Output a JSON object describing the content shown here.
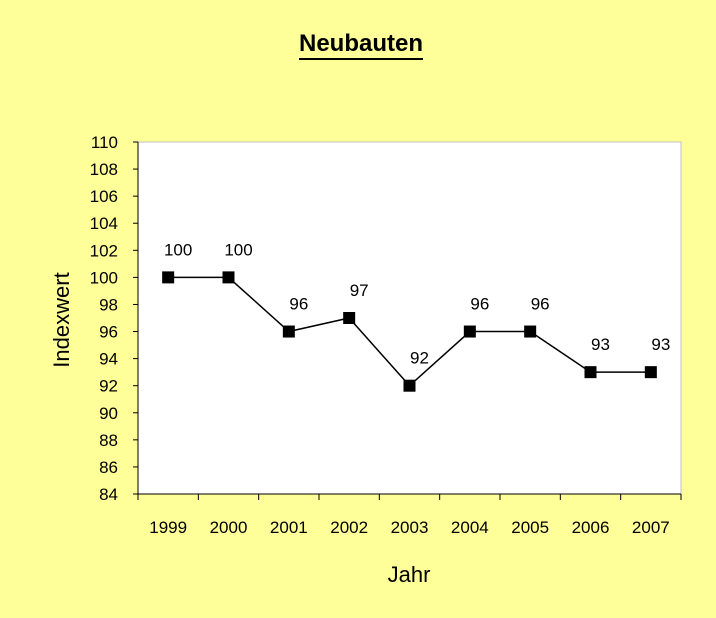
{
  "chart_data": {
    "type": "line",
    "title": "Neubauten",
    "xlabel": "Jahr",
    "ylabel": "Indexwert",
    "categories": [
      "1999",
      "2000",
      "2001",
      "2002",
      "2003",
      "2004",
      "2005",
      "2006",
      "2007"
    ],
    "series": [
      {
        "values": [
          100,
          100,
          96,
          97,
          92,
          96,
          96,
          93,
          93
        ]
      }
    ],
    "data_labels": [
      "100",
      "100",
      "96",
      "97",
      "92",
      "96",
      "96",
      "93",
      "93"
    ],
    "ylim": [
      84,
      110
    ],
    "ytick_step": 2,
    "grid": false,
    "legend": "none",
    "colors": {
      "background": "#FFFF99",
      "plot_area": "#FFFFFF",
      "line": "#000000",
      "marker": "#000000"
    }
  }
}
